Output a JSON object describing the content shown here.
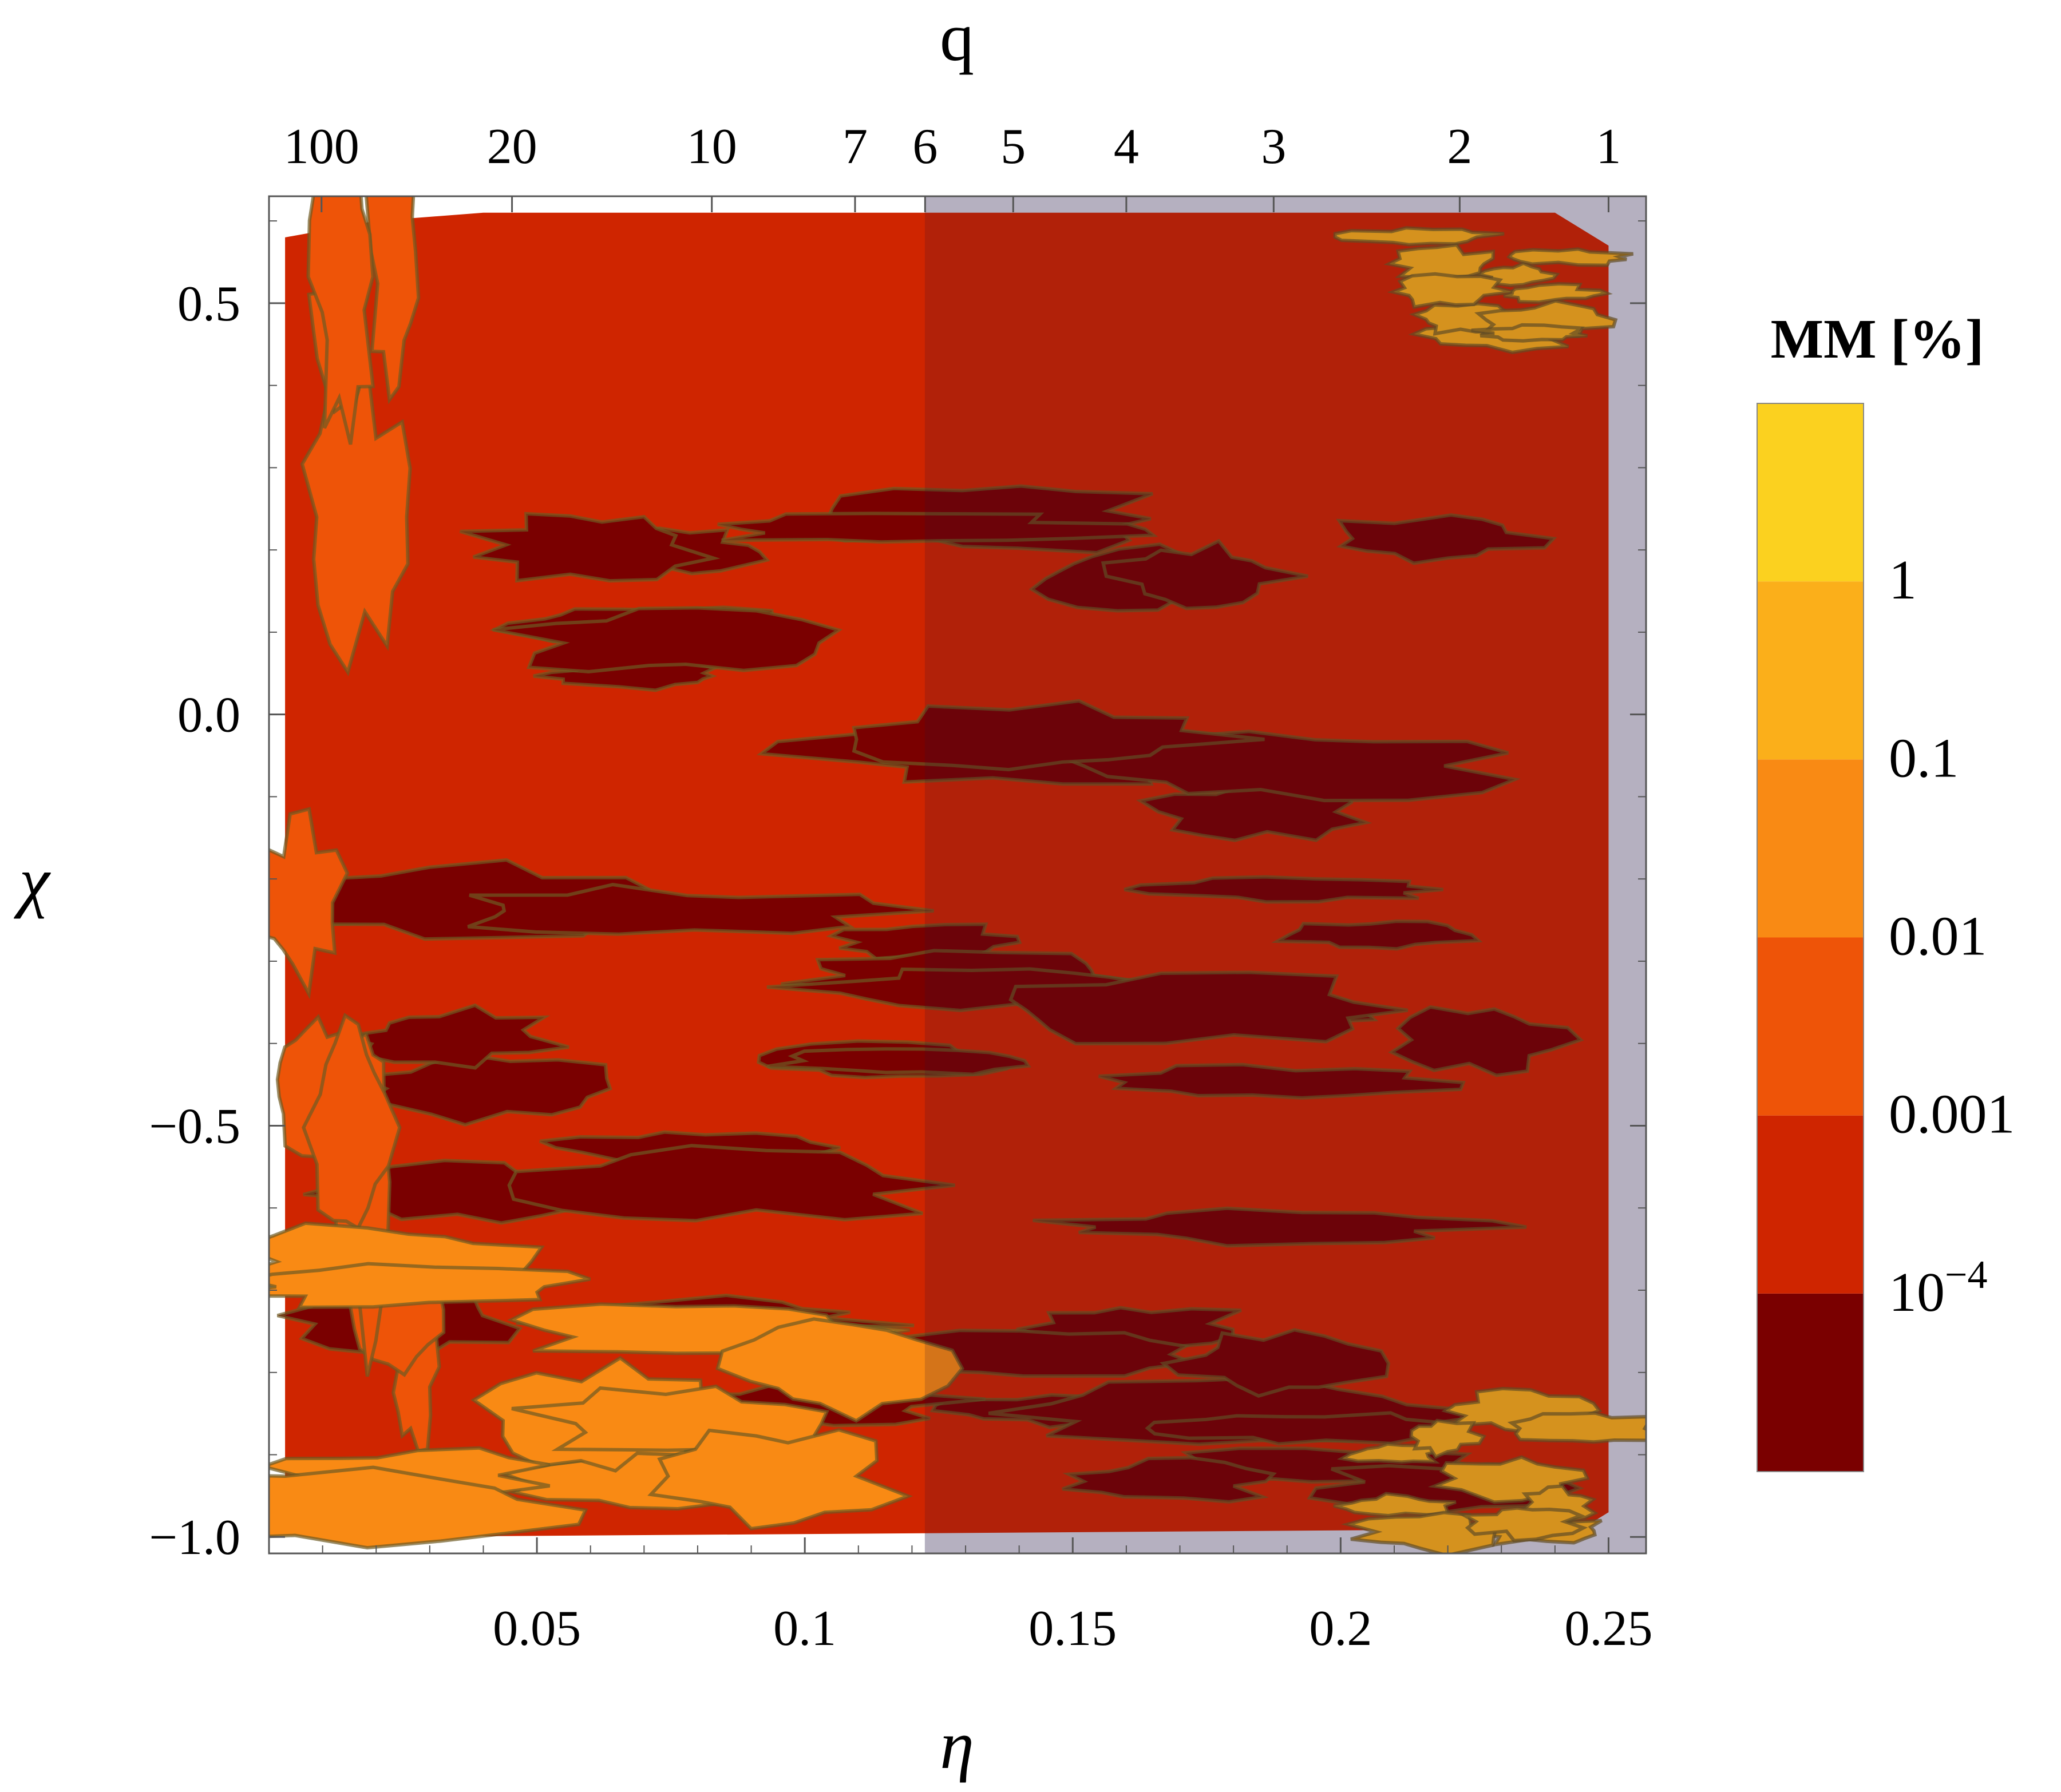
{
  "chart_data": {
    "type": "heatmap",
    "subtype": "filled-contour",
    "xlabel": "η",
    "ylabel": "χ",
    "top_axis_label": "q",
    "xlim": [
      0.0,
      0.257
    ],
    "ylim": [
      -1.02,
      0.63
    ],
    "x_ticks": [
      {
        "value": 0.05,
        "label": "0.05"
      },
      {
        "value": 0.1,
        "label": "0.1"
      },
      {
        "value": 0.15,
        "label": "0.15"
      },
      {
        "value": 0.2,
        "label": "0.2"
      },
      {
        "value": 0.25,
        "label": "0.25"
      }
    ],
    "y_ticks": [
      {
        "value": 0.5,
        "label": "0.5"
      },
      {
        "value": 0.0,
        "label": "0.0"
      },
      {
        "value": -0.5,
        "label": "−0.5"
      },
      {
        "value": -1.0,
        "label": "−1.0"
      }
    ],
    "top_ticks": [
      {
        "q": 100,
        "label": "100"
      },
      {
        "q": 20,
        "label": "20"
      },
      {
        "q": 10,
        "label": "10"
      },
      {
        "q": 7,
        "label": "7"
      },
      {
        "q": 6,
        "label": "6"
      },
      {
        "q": 5,
        "label": "5"
      },
      {
        "q": 4,
        "label": "4"
      },
      {
        "q": 3,
        "label": "3"
      },
      {
        "q": 2,
        "label": "2"
      },
      {
        "q": 1,
        "label": "1"
      }
    ],
    "shaded_region": {
      "eta_min": 0.1224,
      "eta_max": 0.257,
      "description": "q < 6"
    },
    "colorbar": {
      "title": "MM [%]",
      "levels": [
        {
          "label": "",
          "color": "#7a0000"
        },
        {
          "label": "10^-4",
          "color": "#cf2500"
        },
        {
          "label": "0.001",
          "color": "#ee5408"
        },
        {
          "label": "0.01",
          "color": "#f98a14"
        },
        {
          "label": "0.1",
          "color": "#fbaf1a"
        },
        {
          "label": "1",
          "color": "#fbd11f"
        }
      ]
    },
    "regions": [
      {
        "level": "10^-4 – 0.001",
        "color": "#cf2500",
        "eta": [
          0.0,
          0.25
        ],
        "chi": [
          -1.0,
          0.6
        ],
        "note": "dominant background"
      },
      {
        "level": "< 10^-4",
        "color": "#7a0000",
        "eta": [
          0.02,
          0.23
        ],
        "chi": [
          -0.95,
          0.25
        ],
        "note": "central dark band"
      },
      {
        "level": "0.001 – 0.01",
        "color": "#ee5408",
        "eta": [
          0.005,
          0.03
        ],
        "chi": [
          -1.0,
          0.6
        ],
        "note": "left edge strip"
      },
      {
        "level": "0.01 – 1",
        "color": "#f98a14",
        "eta": [
          0.005,
          0.12
        ],
        "chi": [
          -1.0,
          -0.5
        ],
        "note": "lower-left patches"
      },
      {
        "level": "0.01 – 1",
        "color": "#fbaf1a",
        "eta": [
          0.21,
          0.25
        ],
        "chi": [
          0.45,
          0.6
        ],
        "note": "upper-right corner"
      },
      {
        "level": "0.01 – 1",
        "color": "#fbaf1a",
        "eta": [
          0.21,
          0.25
        ],
        "chi": [
          -1.0,
          -0.8
        ],
        "note": "lower-right corner"
      }
    ]
  }
}
